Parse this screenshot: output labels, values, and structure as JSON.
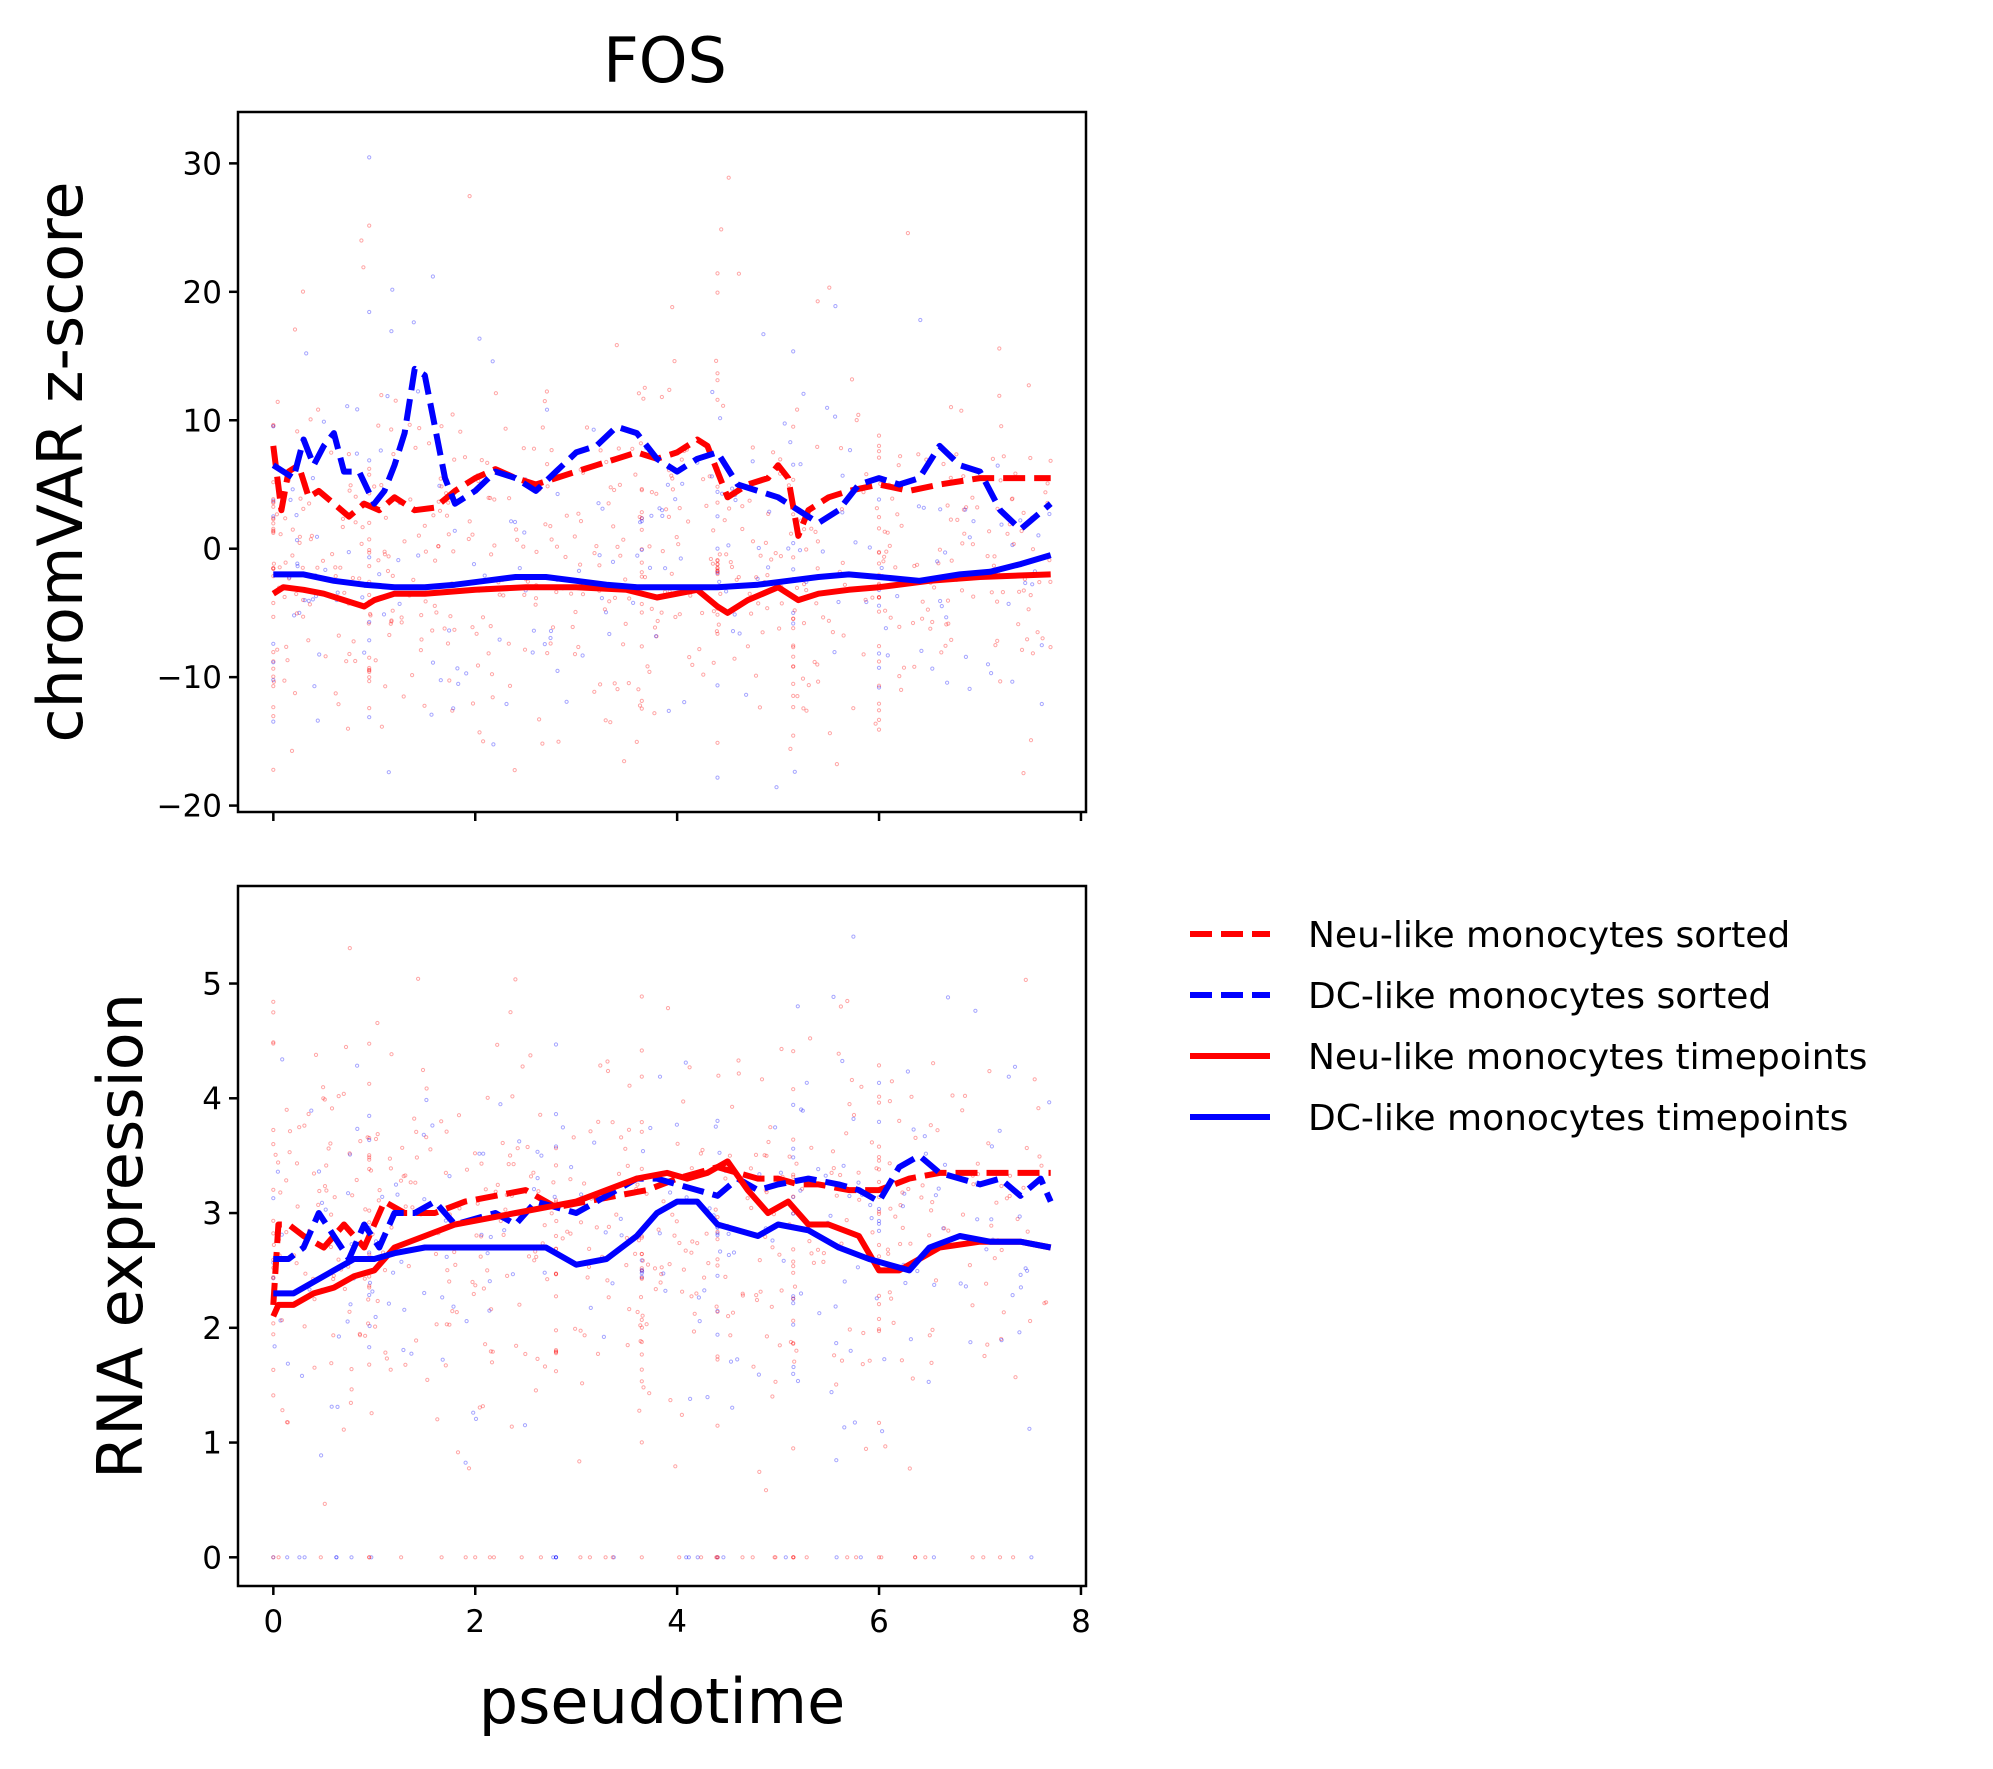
{
  "colors": {
    "neu": "#ff0000",
    "dc": "#0000ff",
    "axis": "#000000",
    "background": "#ffffff"
  },
  "chart_data": [
    {
      "type": "line",
      "title": "FOS",
      "xlabel": "",
      "ylabel": "chromVAR z-score",
      "xlim": [
        -0.35,
        8.05
      ],
      "ylim": [
        -20.5,
        34
      ],
      "xticks": [
        0,
        2,
        4,
        6,
        8
      ],
      "show_xtick_labels": false,
      "yticks": [
        -20,
        -10,
        0,
        10,
        20,
        30
      ],
      "ytick_labels": [
        "−20",
        "−10",
        "0",
        "10",
        "20",
        "30"
      ],
      "grid": false,
      "scatter_overlay": {
        "description_colors": [
          "#ff0000",
          "#0000ff"
        ],
        "x_range": [
          0,
          7.7
        ],
        "approx_y_center": -2,
        "approx_y_spread": 6,
        "vertical_streaks_x": [
          0,
          0.95,
          3.65,
          4.4,
          5.15,
          6.0
        ]
      },
      "series": [
        {
          "name": "Neu-like monocytes sorted",
          "color": "#ff0000",
          "dash": "dashed",
          "x": [
            0,
            0.08,
            0.15,
            0.25,
            0.35,
            0.45,
            0.6,
            0.75,
            0.9,
            1.05,
            1.2,
            1.4,
            1.6,
            1.8,
            2.0,
            2.2,
            2.4,
            2.6,
            2.8,
            3.0,
            3.2,
            3.4,
            3.6,
            3.8,
            4.0,
            4.2,
            4.3,
            4.5,
            4.7,
            4.9,
            5.0,
            5.1,
            5.2,
            5.3,
            5.5,
            5.7,
            6.0,
            6.3,
            6.6,
            7.0,
            7.4,
            7.7
          ],
          "y": [
            8,
            3,
            6,
            6.5,
            4,
            4.5,
            3.5,
            2.5,
            3.5,
            3,
            4,
            3,
            3.2,
            4.5,
            5.5,
            6.2,
            5.5,
            5,
            5.5,
            6,
            6.5,
            7,
            7.5,
            7,
            7.5,
            8.5,
            8,
            4,
            5,
            5.5,
            6.5,
            5.5,
            1,
            3,
            4,
            4.5,
            5,
            4.5,
            5,
            5.5,
            5.5,
            5.5
          ]
        },
        {
          "name": "DC-like monocytes sorted",
          "color": "#0000ff",
          "dash": "dashed",
          "x": [
            0,
            0.1,
            0.2,
            0.3,
            0.4,
            0.5,
            0.6,
            0.7,
            0.85,
            1.0,
            1.1,
            1.2,
            1.3,
            1.4,
            1.5,
            1.6,
            1.7,
            1.8,
            1.9,
            2.0,
            2.2,
            2.4,
            2.6,
            2.8,
            3.0,
            3.2,
            3.4,
            3.6,
            3.8,
            4.0,
            4.2,
            4.4,
            4.6,
            4.8,
            5.0,
            5.2,
            5.4,
            5.6,
            5.8,
            6.0,
            6.2,
            6.4,
            6.6,
            6.8,
            7.0,
            7.2,
            7.4,
            7.7
          ],
          "y": [
            6.5,
            6,
            5.5,
            8.5,
            6.5,
            8,
            9,
            6,
            6,
            3.5,
            4.5,
            6.5,
            9,
            14,
            13.5,
            9.5,
            5.5,
            3.5,
            4,
            4.5,
            6,
            5.5,
            4.5,
            6,
            7.5,
            8,
            9.5,
            9,
            7,
            6,
            7,
            7.5,
            5,
            4.5,
            4,
            3,
            2,
            3,
            5,
            5.5,
            5,
            5.5,
            8,
            6.5,
            6,
            3,
            1.5,
            3.5
          ]
        },
        {
          "name": "Neu-like monocytes timepoints",
          "color": "#ff0000",
          "dash": "solid",
          "x": [
            0,
            0.1,
            0.3,
            0.5,
            0.7,
            0.9,
            1.0,
            1.2,
            1.5,
            2.0,
            2.5,
            3.0,
            3.5,
            3.8,
            4.0,
            4.2,
            4.4,
            4.5,
            4.7,
            5.0,
            5.2,
            5.4,
            5.7,
            6.0,
            6.5,
            7.0,
            7.7
          ],
          "y": [
            -3.5,
            -3.0,
            -3.2,
            -3.5,
            -4.0,
            -4.5,
            -4.0,
            -3.5,
            -3.5,
            -3.2,
            -3.0,
            -3.0,
            -3.2,
            -3.8,
            -3.5,
            -3.2,
            -4.5,
            -5.0,
            -4.0,
            -3.0,
            -4.0,
            -3.5,
            -3.2,
            -3.0,
            -2.5,
            -2.2,
            -2.0
          ]
        },
        {
          "name": "DC-like monocytes timepoints",
          "color": "#0000ff",
          "dash": "solid",
          "x": [
            0,
            0.3,
            0.6,
            0.9,
            1.2,
            1.5,
            1.8,
            2.1,
            2.4,
            2.7,
            3.0,
            3.3,
            3.6,
            4.0,
            4.4,
            4.8,
            5.1,
            5.4,
            5.7,
            6.0,
            6.4,
            6.8,
            7.1,
            7.4,
            7.7
          ],
          "y": [
            -2.0,
            -2.0,
            -2.5,
            -2.8,
            -3.0,
            -3.0,
            -2.8,
            -2.5,
            -2.2,
            -2.2,
            -2.5,
            -2.8,
            -3.0,
            -3.0,
            -3.0,
            -2.8,
            -2.5,
            -2.2,
            -2.0,
            -2.2,
            -2.5,
            -2.0,
            -1.8,
            -1.2,
            -0.5
          ]
        }
      ]
    },
    {
      "type": "line",
      "title": "",
      "xlabel": "pseudotime",
      "ylabel": "RNA expression",
      "xlim": [
        -0.35,
        8.05
      ],
      "ylim": [
        -0.25,
        5.85
      ],
      "xticks": [
        0,
        2,
        4,
        6,
        8
      ],
      "xtick_labels": [
        "0",
        "2",
        "4",
        "6",
        "8"
      ],
      "show_xtick_labels": true,
      "yticks": [
        0,
        1,
        2,
        3,
        4,
        5
      ],
      "ytick_labels": [
        "0",
        "1",
        "2",
        "3",
        "4",
        "5"
      ],
      "grid": false,
      "scatter_overlay": {
        "description_colors": [
          "#ff0000",
          "#0000ff"
        ],
        "x_range": [
          0,
          7.7
        ],
        "approx_y_center": 2.8,
        "approx_y_spread": 0.9,
        "zero_row": true,
        "vertical_streaks_x": [
          0,
          0.95,
          2.8,
          3.65,
          4.4,
          5.15,
          6.0
        ]
      },
      "series": [
        {
          "name": "Neu-like monocytes sorted",
          "color": "#ff0000",
          "dash": "dashed",
          "x": [
            0,
            0.05,
            0.15,
            0.3,
            0.5,
            0.7,
            0.9,
            1.1,
            1.3,
            1.6,
            1.9,
            2.2,
            2.5,
            2.8,
            3.1,
            3.4,
            3.7,
            4.0,
            4.2,
            4.4,
            4.6,
            4.8,
            5.0,
            5.2,
            5.4,
            5.7,
            6.0,
            6.3,
            6.6,
            7.0,
            7.7
          ],
          "y": [
            2.2,
            2.9,
            2.9,
            2.8,
            2.7,
            2.9,
            2.7,
            3.1,
            3.0,
            3.0,
            3.1,
            3.15,
            3.2,
            3.05,
            3.1,
            3.15,
            3.2,
            3.3,
            3.35,
            3.4,
            3.35,
            3.3,
            3.3,
            3.25,
            3.25,
            3.2,
            3.2,
            3.3,
            3.35,
            3.35,
            3.35
          ]
        },
        {
          "name": "DC-like monocytes sorted",
          "color": "#0000ff",
          "dash": "dashed",
          "x": [
            0,
            0.15,
            0.3,
            0.45,
            0.6,
            0.75,
            0.9,
            1.05,
            1.2,
            1.4,
            1.6,
            1.8,
            2.0,
            2.2,
            2.4,
            2.6,
            2.8,
            3.0,
            3.2,
            3.4,
            3.6,
            3.8,
            4.0,
            4.2,
            4.4,
            4.6,
            4.8,
            5.0,
            5.3,
            5.6,
            5.8,
            6.0,
            6.2,
            6.4,
            6.6,
            6.8,
            7.0,
            7.2,
            7.4,
            7.6,
            7.7
          ],
          "y": [
            2.6,
            2.6,
            2.7,
            3.0,
            2.8,
            2.6,
            2.9,
            2.7,
            3.0,
            3.0,
            3.1,
            2.9,
            2.95,
            3.0,
            2.9,
            3.1,
            3.05,
            3.0,
            3.1,
            3.2,
            3.3,
            3.3,
            3.25,
            3.2,
            3.15,
            3.3,
            3.2,
            3.25,
            3.3,
            3.25,
            3.2,
            3.1,
            3.4,
            3.5,
            3.35,
            3.3,
            3.25,
            3.3,
            3.15,
            3.3,
            3.1
          ]
        },
        {
          "name": "Neu-like monocytes timepoints",
          "color": "#ff0000",
          "dash": "solid",
          "x": [
            0,
            0.05,
            0.2,
            0.4,
            0.6,
            0.8,
            1.0,
            1.2,
            1.5,
            1.8,
            2.1,
            2.4,
            2.7,
            3.0,
            3.3,
            3.6,
            3.9,
            4.1,
            4.3,
            4.5,
            4.7,
            4.9,
            5.1,
            5.3,
            5.5,
            5.8,
            6.0,
            6.2,
            6.4,
            6.6,
            7.0,
            7.4,
            7.7
          ],
          "y": [
            2.1,
            2.2,
            2.2,
            2.3,
            2.35,
            2.45,
            2.5,
            2.7,
            2.8,
            2.9,
            2.95,
            3.0,
            3.05,
            3.1,
            3.2,
            3.3,
            3.35,
            3.3,
            3.35,
            3.45,
            3.2,
            3.0,
            3.1,
            2.9,
            2.9,
            2.8,
            2.5,
            2.5,
            2.6,
            2.7,
            2.75,
            2.75,
            2.7
          ]
        },
        {
          "name": "DC-like monocytes timepoints",
          "color": "#0000ff",
          "dash": "solid",
          "x": [
            0,
            0.2,
            0.4,
            0.6,
            0.8,
            1.0,
            1.2,
            1.5,
            1.8,
            2.1,
            2.4,
            2.7,
            3.0,
            3.3,
            3.6,
            3.8,
            4.0,
            4.2,
            4.4,
            4.6,
            4.8,
            5.0,
            5.3,
            5.6,
            5.9,
            6.1,
            6.3,
            6.5,
            6.8,
            7.1,
            7.4,
            7.7
          ],
          "y": [
            2.3,
            2.3,
            2.4,
            2.5,
            2.6,
            2.6,
            2.65,
            2.7,
            2.7,
            2.7,
            2.7,
            2.7,
            2.55,
            2.6,
            2.8,
            3.0,
            3.1,
            3.1,
            2.9,
            2.85,
            2.8,
            2.9,
            2.85,
            2.7,
            2.6,
            2.55,
            2.5,
            2.7,
            2.8,
            2.75,
            2.75,
            2.7
          ]
        }
      ]
    }
  ],
  "legend": {
    "placement": "right of lower panel",
    "entries": [
      {
        "label": "Neu-like monocytes sorted",
        "color": "#ff0000",
        "dash": "dashed"
      },
      {
        "label": "DC-like monocytes sorted",
        "color": "#0000ff",
        "dash": "dashed"
      },
      {
        "label": "Neu-like monocytes timepoints",
        "color": "#ff0000",
        "dash": "solid"
      },
      {
        "label": "DC-like monocytes timepoints",
        "color": "#0000ff",
        "dash": "solid"
      }
    ]
  }
}
